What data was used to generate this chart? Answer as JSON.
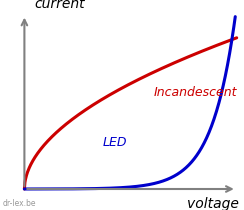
{
  "background_color": "#ffffff",
  "axis_color": "#808080",
  "led_color": "#0000cc",
  "incandescent_color": "#cc0000",
  "led_label": "LED",
  "incandescent_label": "Incandescent",
  "xlabel": "voltage",
  "ylabel": "current",
  "watermark": "dr-lex.be",
  "led_label_fontsize": 9,
  "incandescent_label_fontsize": 9,
  "axis_label_fontsize": 10,
  "watermark_fontsize": 5.5,
  "ox": 0.1,
  "oy": 0.1,
  "xmax": 0.97,
  "ymax": 0.93
}
